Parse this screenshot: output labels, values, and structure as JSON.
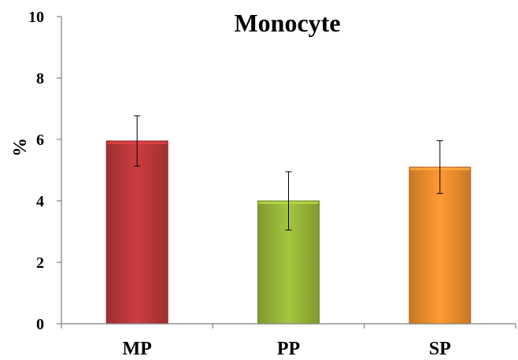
{
  "chart_data": {
    "type": "bar",
    "title": "Monocyte",
    "xlabel": "",
    "ylabel": "%",
    "ylim": [
      0,
      10
    ],
    "yticks": [
      0,
      2,
      4,
      6,
      8,
      10
    ],
    "grid": false,
    "legend": "none",
    "categories": [
      "MP",
      "PP",
      "SP"
    ],
    "values": [
      5.95,
      4.0,
      5.1
    ],
    "errors": [
      0.82,
      0.95,
      0.86
    ],
    "colors": [
      "#c0393b",
      "#9bbb3b",
      "#f39130"
    ]
  }
}
